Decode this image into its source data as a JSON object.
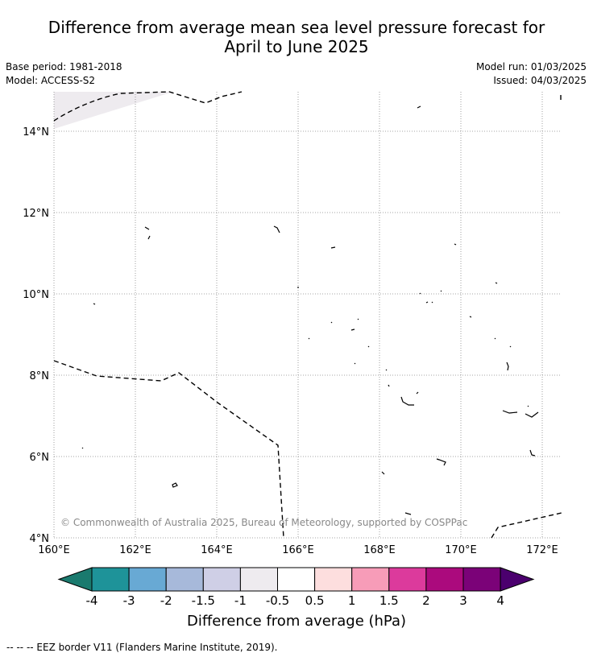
{
  "header": {
    "title_line1": "Difference from average mean sea level pressure forecast for",
    "title_line2": "April to June 2025",
    "base_period": "Base period: 1981-2018",
    "model": "Model: ACCESS-S2",
    "model_run": "Model run: 01/03/2025",
    "issued": "Issued: 04/03/2025"
  },
  "map": {
    "lon_ticks": [
      "160°E",
      "162°E",
      "164°E",
      "166°E",
      "168°E",
      "170°E",
      "172°E"
    ],
    "lat_ticks": [
      "14°N",
      "12°N",
      "10°N",
      "8°N",
      "6°N",
      "4°N"
    ],
    "copyright": "© Commonwealth of Australia 2025, Bureau of Meteorology, supported by COSPPac",
    "shaded_region_class": "-1 to -0.5",
    "shaded_region_color": "#eeebef"
  },
  "colorbar": {
    "title": "Difference from average (hPa)",
    "tick_labels": [
      "-4",
      "-3",
      "-2",
      "-1.5",
      "-1",
      "-0.5",
      "0.5",
      "1",
      "1.5",
      "2",
      "3",
      "4"
    ],
    "colors": [
      "#1a7a6e",
      "#1e9399",
      "#68a9d4",
      "#a7b9da",
      "#cfcfe6",
      "#eeebef",
      "#ffffff",
      "#fddede",
      "#f79cb8",
      "#dc3a9c",
      "#ab0a7d",
      "#7b0278",
      "#4b006e"
    ]
  },
  "footer": {
    "legend_text": "--  --  -- EEZ border V11 (Flanders Marine Institute, 2019)."
  }
}
